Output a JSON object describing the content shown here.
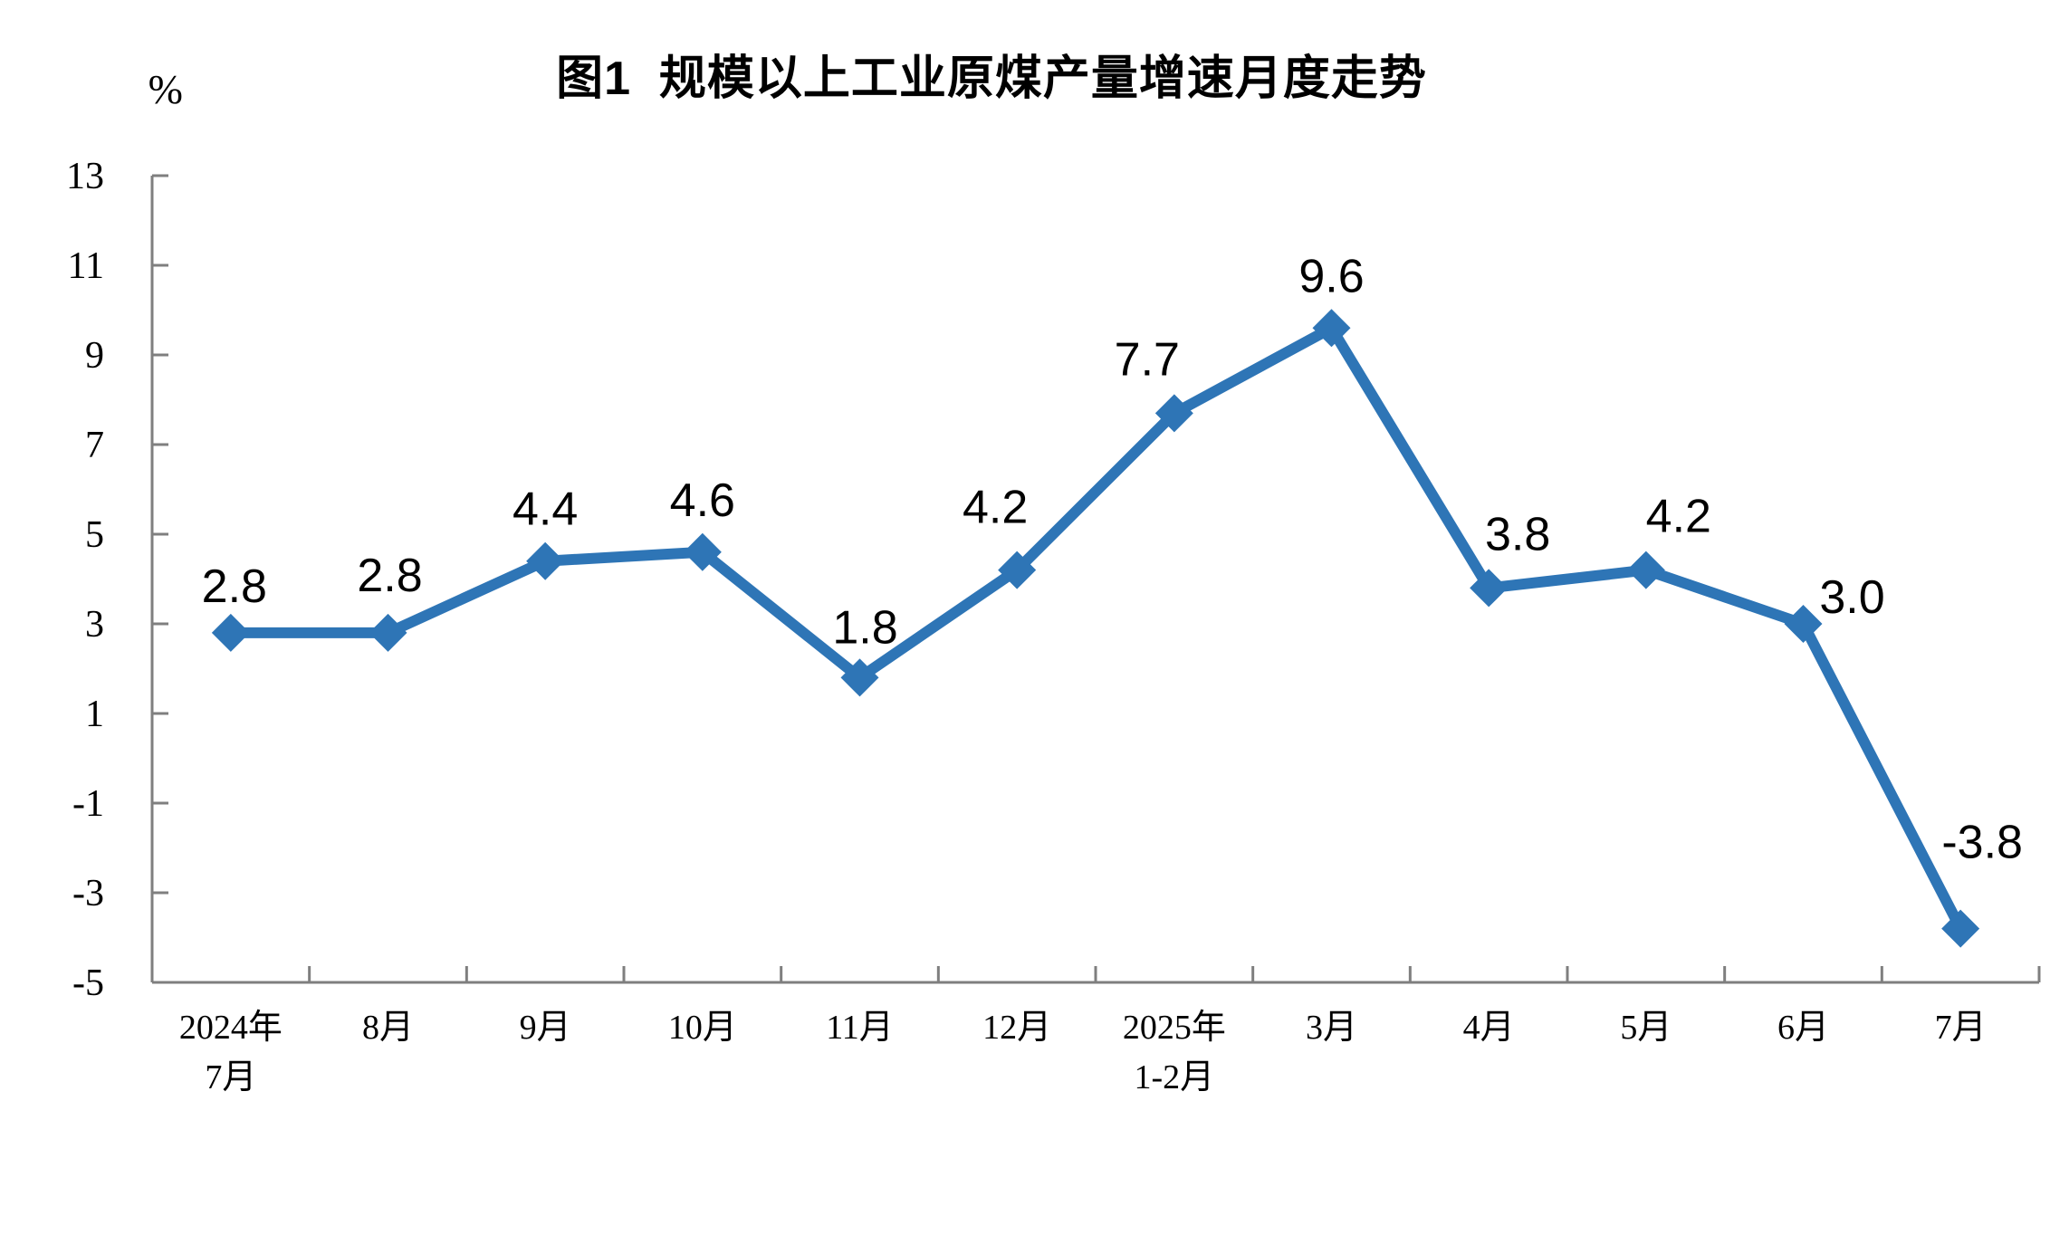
{
  "page": {
    "background": "#FFFFFF"
  },
  "chart_data": {
    "type": "line",
    "title": "图1  规模以上工业原煤产量增速月度走势",
    "ylabel": "%",
    "xlabel": "",
    "categories": [
      [
        "2024年",
        "7月"
      ],
      [
        "8月"
      ],
      [
        "9月"
      ],
      [
        "10月"
      ],
      [
        "11月"
      ],
      [
        "12月"
      ],
      [
        "2025年",
        "1-2月"
      ],
      [
        "3月"
      ],
      [
        "4月"
      ],
      [
        "5月"
      ],
      [
        "6月"
      ],
      [
        "7月"
      ]
    ],
    "series": [
      {
        "name": "规模以上工业原煤产量增速",
        "values": [
          2.8,
          2.8,
          4.4,
          4.6,
          1.8,
          4.2,
          7.7,
          9.6,
          3.8,
          4.2,
          3.0,
          -3.8
        ],
        "data_labels": [
          "2.8",
          "2.8",
          "4.4",
          "4.6",
          "1.8",
          "4.2",
          "7.7",
          "9.6",
          "3.8",
          "4.2",
          "3.0",
          "-3.8"
        ]
      }
    ],
    "ylim": [
      -5,
      13
    ],
    "yticks": [
      13,
      11,
      9,
      7,
      5,
      3,
      1,
      -1,
      -3,
      -5
    ],
    "grid": false,
    "legend": "none",
    "marker": "diamond",
    "colors": {
      "line": "#2E75B6",
      "marker": "#2E75B6",
      "axis": "#7F7F7F",
      "text": "#000000"
    }
  }
}
